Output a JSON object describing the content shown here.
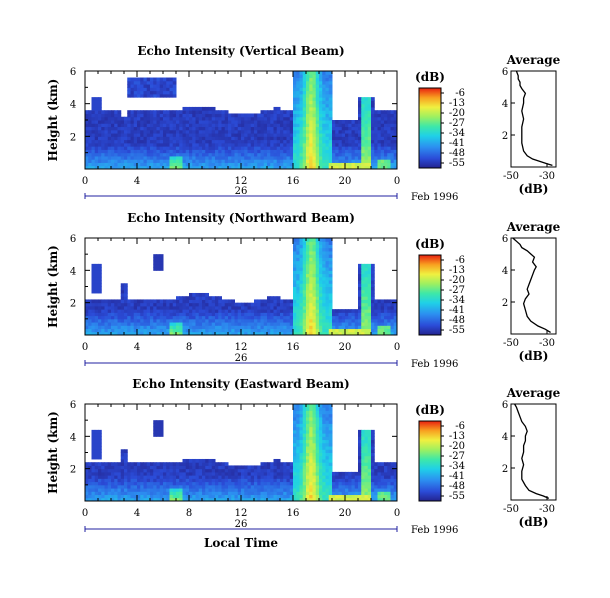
{
  "chart_data": [
    {
      "type": "heatmap",
      "title": "Echo Intensity (Vertical Beam)",
      "ylabel": "Height (km)",
      "y_ticks": [
        "6",
        "4",
        "2"
      ],
      "ylim": [
        0,
        6
      ],
      "x_ticks": [
        "0",
        "4",
        "12",
        "16",
        "20",
        "0"
      ],
      "xlim_hours": [
        0,
        24
      ],
      "date_ticks": [
        "26"
      ],
      "date_label": "Feb 1996",
      "colorbar": {
        "unit": "(dB)",
        "ticks": [
          "-6",
          "-13",
          "-20",
          "-27",
          "-34",
          "-41",
          "-48",
          "-55"
        ]
      }
    },
    {
      "type": "heatmap",
      "title": "Echo Intensity (Northward Beam)",
      "ylabel": "Height (km)",
      "y_ticks": [
        "6",
        "4",
        "2"
      ],
      "ylim": [
        0,
        6
      ],
      "x_ticks": [
        "0",
        "4",
        "8",
        "12",
        "16",
        "20",
        "0"
      ],
      "xlim_hours": [
        0,
        24
      ],
      "date_ticks": [
        "26"
      ],
      "date_label": "Feb 1996",
      "colorbar": {
        "unit": "(dB)",
        "ticks": [
          "-6",
          "-13",
          "-20",
          "-27",
          "-34",
          "-41",
          "-48",
          "-55"
        ]
      }
    },
    {
      "type": "heatmap",
      "title": "Echo Intensity (Eastward Beam)",
      "ylabel": "Height (km)",
      "xlabel": "Local Time",
      "y_ticks": [
        "6",
        "4",
        "2"
      ],
      "ylim": [
        0,
        6
      ],
      "x_ticks": [
        "0",
        "4",
        "8",
        "12",
        "16",
        "20",
        "0"
      ],
      "xlim_hours": [
        0,
        24
      ],
      "date_ticks": [
        "26"
      ],
      "date_label": "Feb 1996",
      "colorbar": {
        "unit": "(dB)",
        "ticks": [
          "-6",
          "-13",
          "-20",
          "-27",
          "-34",
          "-41",
          "-48",
          "-55"
        ]
      }
    },
    {
      "type": "line",
      "title": "Average",
      "xlabel": "(dB)",
      "x_ticks": [
        "-50",
        "-30"
      ],
      "y_ticks": [
        "6",
        "4",
        "2"
      ],
      "xlim": [
        -50,
        -25
      ],
      "ylim": [
        0,
        6
      ],
      "profile": {
        "x": [
          -27,
          -30,
          -34,
          -38,
          -41,
          -43,
          -44,
          -44,
          -44,
          -43,
          -44,
          -43,
          -43,
          -42,
          -44,
          -45,
          -45,
          -46,
          -46,
          -47
        ],
        "y": [
          0.1,
          0.2,
          0.35,
          0.5,
          0.7,
          1.0,
          1.5,
          2.0,
          2.5,
          3.0,
          3.5,
          4.0,
          4.3,
          4.6,
          4.9,
          5.1,
          5.3,
          5.5,
          5.7,
          6.0
        ]
      }
    },
    {
      "type": "line",
      "title": "Average",
      "xlabel": "(dB)",
      "x_ticks": [
        "-50",
        "-30"
      ],
      "y_ticks": [
        "6",
        "4",
        "2"
      ],
      "xlim": [
        -50,
        -25
      ],
      "ylim": [
        0,
        6
      ],
      "profile": {
        "x": [
          -28,
          -31,
          -35,
          -39,
          -41,
          -42,
          -43,
          -42,
          -40,
          -41,
          -40,
          -39,
          -38,
          -37,
          -36,
          -38,
          -37,
          -39,
          -41,
          -44,
          -45,
          -46,
          -47,
          -48,
          -49
        ],
        "y": [
          0.1,
          0.3,
          0.5,
          0.8,
          1.1,
          1.5,
          1.9,
          2.2,
          2.5,
          2.8,
          3.1,
          3.4,
          3.7,
          4.0,
          4.2,
          4.5,
          4.8,
          5.0,
          5.2,
          5.4,
          5.6,
          5.7,
          5.8,
          5.9,
          6.0
        ]
      }
    },
    {
      "type": "line",
      "title": "Average",
      "xlabel": "(dB)",
      "x_ticks": [
        "-50",
        "-30"
      ],
      "y_ticks": [
        "6",
        "4",
        "2"
      ],
      "xlim": [
        -50,
        -25
      ],
      "ylim": [
        0,
        6
      ],
      "profile": {
        "x": [
          -29,
          -32,
          -36,
          -40,
          -42,
          -44,
          -44,
          -43,
          -44,
          -43,
          -43,
          -42,
          -42,
          -41,
          -42,
          -44,
          -45,
          -46,
          -47,
          -48
        ],
        "y": [
          0.1,
          0.25,
          0.4,
          0.6,
          0.9,
          1.3,
          1.8,
          2.2,
          2.6,
          3.0,
          3.4,
          3.7,
          4.0,
          4.3,
          4.6,
          4.9,
          5.2,
          5.5,
          5.8,
          6.0
        ]
      }
    }
  ]
}
